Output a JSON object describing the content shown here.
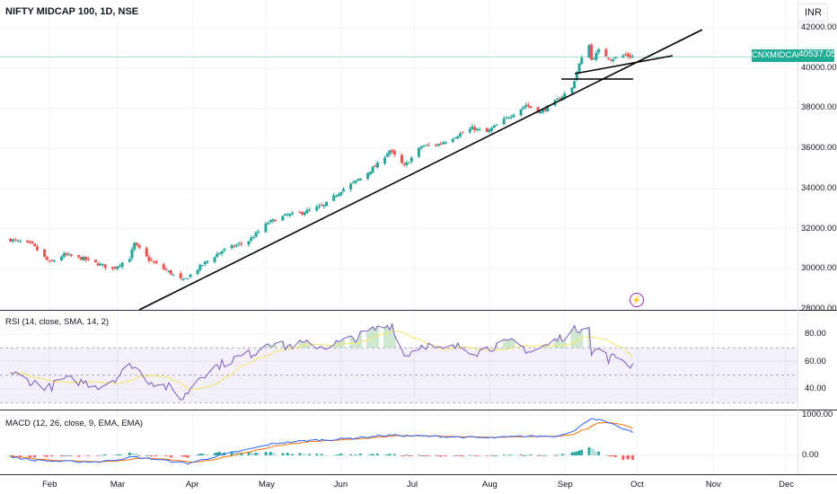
{
  "header": {
    "title": "NIFTY MIDCAP 100, 1D, NSE",
    "currency": "INR"
  },
  "price_tag": {
    "symbol": "CNXMIDCAP",
    "value": "40537.05"
  },
  "rsi_pane": {
    "label": "RSI (14, close, SMA, 14, 2)"
  },
  "macd_pane": {
    "label": "MACD (12, 26, close, 9, EMA, EMA)"
  },
  "colors": {
    "up": "#26a69a",
    "down": "#ef5350",
    "rsi": "#7e57c2",
    "rsi_sma": "#f5e67a",
    "macd": "#2962ff",
    "signal": "#ff6d00",
    "band": "#7e57c2",
    "tag": "#22ab94"
  },
  "chart_data": [
    {
      "type": "candlestick",
      "yaxis_ticks": [
        "42000.00",
        "40000.00",
        "38000.00",
        "36000.00",
        "34000.00",
        "32000.00",
        "30000.00",
        "28000.00"
      ],
      "ylim": [
        28000,
        42100
      ],
      "xaxis_ticks": [
        "Feb",
        "Mar",
        "Apr",
        "May",
        "Jun",
        "Jul",
        "Aug",
        "Sep",
        "Oct",
        "Nov",
        "Dec"
      ],
      "last_price": 40537.05,
      "close_anchors": [
        [
          "Jan-16",
          31450
        ],
        [
          "Jan-25",
          31200
        ],
        [
          "Feb-01",
          30300
        ],
        [
          "Feb-07",
          30700
        ],
        [
          "Feb-15",
          30500
        ],
        [
          "Feb-22",
          30200
        ],
        [
          "Feb-27",
          30000
        ],
        [
          "Mar-06",
          30550
        ],
        [
          "Mar-08",
          31250
        ],
        [
          "Mar-14",
          30450
        ],
        [
          "Mar-20",
          30000
        ],
        [
          "Mar-28",
          29400
        ],
        [
          "Apr-06",
          30300
        ],
        [
          "Apr-13",
          30900
        ],
        [
          "Apr-24",
          31400
        ],
        [
          "May-02",
          32300
        ],
        [
          "May-09",
          32650
        ],
        [
          "May-16",
          32800
        ],
        [
          "May-25",
          33150
        ],
        [
          "Jun-01",
          33900
        ],
        [
          "Jun-09",
          34500
        ],
        [
          "Jun-16",
          35200
        ],
        [
          "Jun-21",
          35900
        ],
        [
          "Jun-27",
          35100
        ],
        [
          "Jul-04",
          36100
        ],
        [
          "Jul-11",
          36200
        ],
        [
          "Jul-18",
          36600
        ],
        [
          "Jul-25",
          37000
        ],
        [
          "Jul-31",
          36800
        ],
        [
          "Aug-08",
          37500
        ],
        [
          "Aug-16",
          38150
        ],
        [
          "Aug-22",
          37800
        ],
        [
          "Aug-29",
          38400
        ],
        [
          "Sep-04",
          39000
        ],
        [
          "Sep-07",
          40200
        ],
        [
          "Sep-11",
          41200
        ],
        [
          "Sep-12",
          40400
        ],
        [
          "Sep-15",
          40850
        ],
        [
          "Sep-20",
          40450
        ],
        [
          "Sep-26",
          40650
        ],
        [
          "Sep-29",
          40537
        ]
      ]
    },
    {
      "type": "line",
      "name": "RSI (14, close, SMA, 14, 2)",
      "yaxis_ticks": [
        "80.00",
        "60.00",
        "40.00"
      ],
      "ylim": [
        25,
        92
      ],
      "bands": [
        70,
        50,
        30
      ],
      "rsi_anchors": [
        [
          "Jan-16",
          52
        ],
        [
          "Jan-25",
          45
        ],
        [
          "Feb-01",
          41
        ],
        [
          "Feb-07",
          47
        ],
        [
          "Feb-15",
          45
        ],
        [
          "Feb-22",
          42
        ],
        [
          "Mar-01",
          49
        ],
        [
          "Mar-07",
          58
        ],
        [
          "Mar-14",
          46
        ],
        [
          "Mar-22",
          41
        ],
        [
          "Mar-28",
          33
        ],
        [
          "Apr-03",
          48
        ],
        [
          "Apr-10",
          56
        ],
        [
          "Apr-18",
          62
        ],
        [
          "Apr-27",
          67
        ],
        [
          "May-02",
          75
        ],
        [
          "May-09",
          71
        ],
        [
          "May-16",
          73
        ],
        [
          "May-25",
          71
        ],
        [
          "Jun-01",
          74
        ],
        [
          "Jun-08",
          78
        ],
        [
          "Jun-14",
          83
        ],
        [
          "Jun-22",
          87
        ],
        [
          "Jun-27",
          64
        ],
        [
          "Jul-05",
          73
        ],
        [
          "Jul-12",
          68
        ],
        [
          "Jul-20",
          71
        ],
        [
          "Jul-27",
          67
        ],
        [
          "Aug-04",
          72
        ],
        [
          "Aug-11",
          74
        ],
        [
          "Aug-18",
          67
        ],
        [
          "Aug-25",
          72
        ],
        [
          "Sep-03",
          81
        ],
        [
          "Sep-11",
          88
        ],
        [
          "Sep-12",
          65
        ],
        [
          "Sep-15",
          70
        ],
        [
          "Sep-19",
          62
        ],
        [
          "Sep-23",
          64
        ],
        [
          "Sep-26",
          61
        ],
        [
          "Sep-27",
          56
        ],
        [
          "Sep-29",
          60
        ]
      ]
    },
    {
      "type": "line",
      "name": "MACD (12, 26, close, 9, EMA, EMA)",
      "yaxis_ticks": [
        "1000.00",
        "0.00"
      ],
      "ylim": [
        -350,
        1100
      ],
      "macd_anchors": [
        [
          "Jan-16",
          -30
        ],
        [
          "Jan-25",
          -120
        ],
        [
          "Feb-07",
          -150
        ],
        [
          "Feb-22",
          -160
        ],
        [
          "Mar-08",
          -40
        ],
        [
          "Mar-20",
          -120
        ],
        [
          "Mar-30",
          -200
        ],
        [
          "Apr-10",
          -30
        ],
        [
          "Apr-24",
          150
        ],
        [
          "May-05",
          300
        ],
        [
          "May-20",
          370
        ],
        [
          "Jun-05",
          420
        ],
        [
          "Jun-20",
          500
        ],
        [
          "Jul-02",
          480
        ],
        [
          "Jul-18",
          460
        ],
        [
          "Aug-01",
          430
        ],
        [
          "Aug-15",
          470
        ],
        [
          "Aug-29",
          480
        ],
        [
          "Sep-06",
          650
        ],
        [
          "Sep-12",
          930
        ],
        [
          "Sep-18",
          820
        ],
        [
          "Sep-29",
          570
        ]
      ]
    }
  ]
}
